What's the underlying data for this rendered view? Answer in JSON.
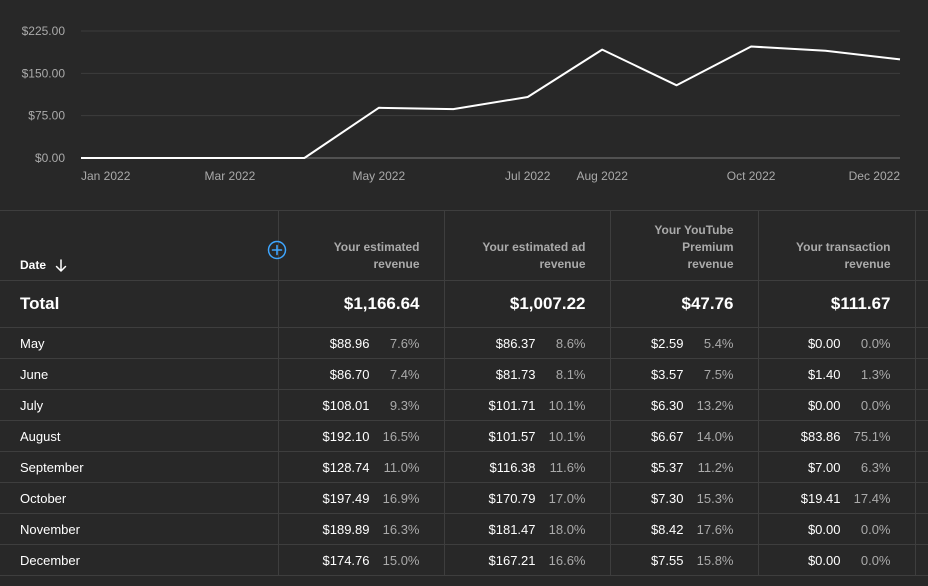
{
  "chart_data": {
    "type": "line",
    "x": [
      "Jan 2022",
      "Feb 2022",
      "Mar 2022",
      "Apr 2022",
      "May 2022",
      "Jun 2022",
      "Jul 2022",
      "Aug 2022",
      "Sep 2022",
      "Oct 2022",
      "Nov 2022",
      "Dec 2022"
    ],
    "x_ticks": [
      "Jan 2022",
      "Mar 2022",
      "May 2022",
      "Jul 2022",
      "Aug 2022",
      "Oct 2022",
      "Dec 2022"
    ],
    "series": [
      {
        "values": [
          0,
          0,
          0,
          0,
          88.96,
          86.7,
          108.01,
          192.1,
          128.74,
          197.49,
          189.89,
          174.76
        ]
      }
    ],
    "y_ticks": [
      "$0.00",
      "$75.00",
      "$150.00",
      "$225.00"
    ],
    "ylim": [
      0,
      225
    ],
    "grid": true,
    "title": "",
    "xlabel": "",
    "ylabel": ""
  },
  "table": {
    "date_header": "Date",
    "columns": [
      [
        "Your estimated",
        "revenue"
      ],
      [
        "Your estimated ad",
        "revenue"
      ],
      [
        "Your YouTube",
        "Premium",
        "revenue"
      ],
      [
        "Your transaction",
        "revenue"
      ]
    ],
    "total": {
      "label": "Total",
      "values": [
        "$1,166.64",
        "$1,007.22",
        "$47.76",
        "$111.67"
      ]
    },
    "rows": [
      {
        "month": "May",
        "cells": [
          [
            "$88.96",
            "7.6%"
          ],
          [
            "$86.37",
            "8.6%"
          ],
          [
            "$2.59",
            "5.4%"
          ],
          [
            "$0.00",
            "0.0%"
          ]
        ]
      },
      {
        "month": "June",
        "cells": [
          [
            "$86.70",
            "7.4%"
          ],
          [
            "$81.73",
            "8.1%"
          ],
          [
            "$3.57",
            "7.5%"
          ],
          [
            "$1.40",
            "1.3%"
          ]
        ]
      },
      {
        "month": "July",
        "cells": [
          [
            "$108.01",
            "9.3%"
          ],
          [
            "$101.71",
            "10.1%"
          ],
          [
            "$6.30",
            "13.2%"
          ],
          [
            "$0.00",
            "0.0%"
          ]
        ]
      },
      {
        "month": "August",
        "cells": [
          [
            "$192.10",
            "16.5%"
          ],
          [
            "$101.57",
            "10.1%"
          ],
          [
            "$6.67",
            "14.0%"
          ],
          [
            "$83.86",
            "75.1%"
          ]
        ]
      },
      {
        "month": "September",
        "cells": [
          [
            "$128.74",
            "11.0%"
          ],
          [
            "$116.38",
            "11.6%"
          ],
          [
            "$5.37",
            "11.2%"
          ],
          [
            "$7.00",
            "6.3%"
          ]
        ]
      },
      {
        "month": "October",
        "cells": [
          [
            "$197.49",
            "16.9%"
          ],
          [
            "$170.79",
            "17.0%"
          ],
          [
            "$7.30",
            "15.3%"
          ],
          [
            "$19.41",
            "17.4%"
          ]
        ]
      },
      {
        "month": "November",
        "cells": [
          [
            "$189.89",
            "16.3%"
          ],
          [
            "$181.47",
            "18.0%"
          ],
          [
            "$8.42",
            "17.6%"
          ],
          [
            "$0.00",
            "0.0%"
          ]
        ]
      },
      {
        "month": "December",
        "cells": [
          [
            "$174.76",
            "15.0%"
          ],
          [
            "$167.21",
            "16.6%"
          ],
          [
            "$7.55",
            "15.8%"
          ],
          [
            "$0.00",
            "0.0%"
          ]
        ]
      }
    ]
  },
  "icons": {
    "sort": "arrow-down-icon",
    "add_metric": "plus-circle-icon"
  },
  "colors": {
    "background": "#282828",
    "line": "#ffffff",
    "accent": "#3ea6ff",
    "muted_text": "#aaaaaa"
  }
}
